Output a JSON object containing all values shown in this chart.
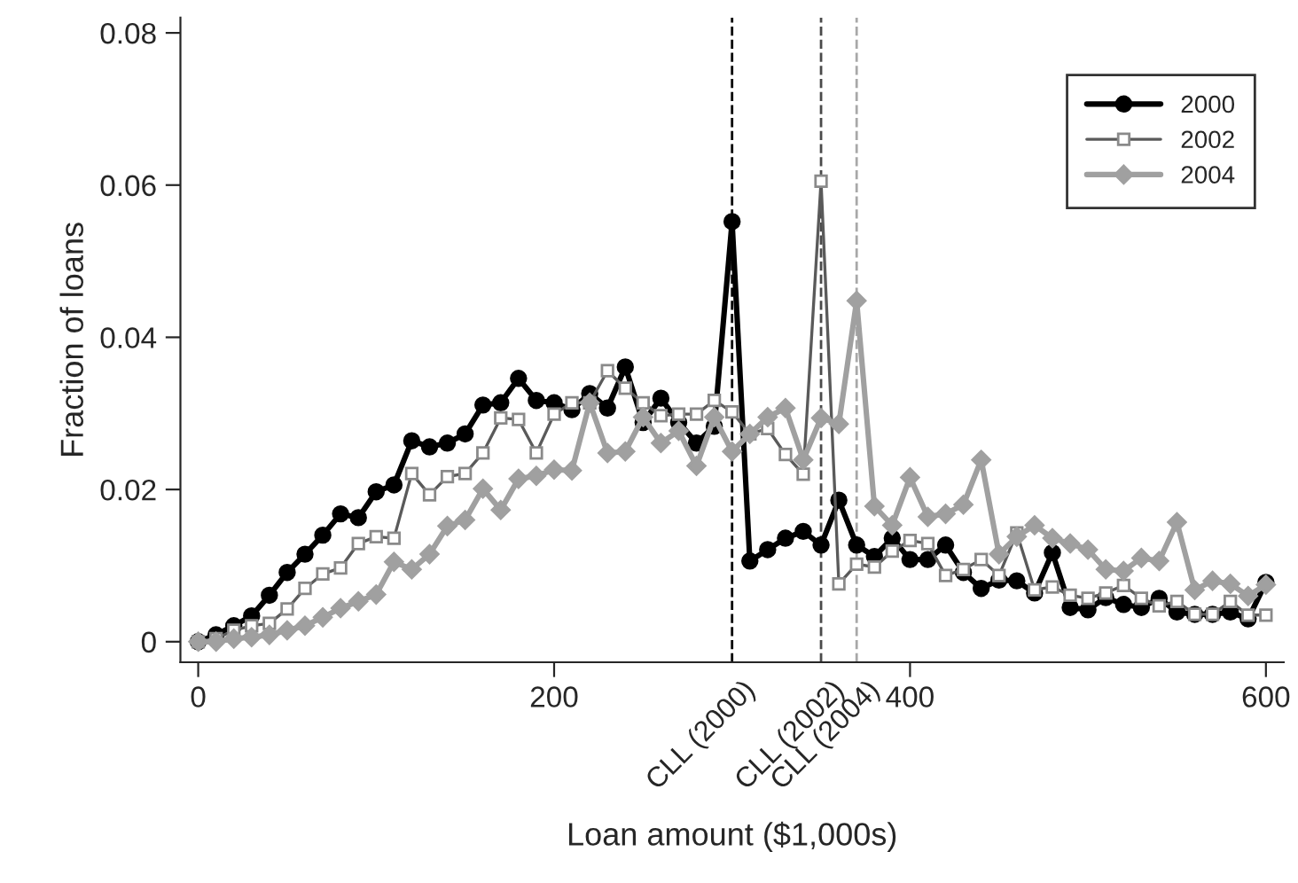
{
  "chart_data": {
    "type": "line",
    "xlabel": "Loan amount ($1,000s)",
    "ylabel": "Fraction of loans",
    "x": [
      0,
      10,
      20,
      30,
      40,
      50,
      60,
      70,
      80,
      90,
      100,
      110,
      120,
      130,
      140,
      150,
      160,
      170,
      180,
      190,
      200,
      210,
      220,
      230,
      240,
      250,
      260,
      270,
      280,
      290,
      300,
      310,
      320,
      330,
      340,
      350,
      360,
      370,
      380,
      390,
      400,
      410,
      420,
      430,
      440,
      450,
      460,
      470,
      480,
      490,
      500,
      510,
      520,
      530,
      540,
      550,
      560,
      570,
      580,
      590,
      600
    ],
    "series": [
      {
        "name": "2000",
        "color": "#000000",
        "marker": "circle",
        "values": [
          0,
          0.0009,
          0.0021,
          0.0034,
          0.0061,
          0.0091,
          0.0115,
          0.014,
          0.0168,
          0.0163,
          0.0197,
          0.0206,
          0.0264,
          0.0256,
          0.0261,
          0.0273,
          0.0311,
          0.0314,
          0.0346,
          0.0317,
          0.0314,
          0.0305,
          0.0326,
          0.0307,
          0.0361,
          0.0288,
          0.032,
          0.0288,
          0.0261,
          0.0283,
          0.0552,
          0.0106,
          0.0121,
          0.0136,
          0.0145,
          0.0127,
          0.0186,
          0.0127,
          0.0112,
          0.0136,
          0.0108,
          0.0108,
          0.0127,
          0.0091,
          0.007,
          0.0081,
          0.008,
          0.0064,
          0.0117,
          0.0045,
          0.0042,
          0.0058,
          0.0049,
          0.0045,
          0.0057,
          0.0039,
          0.0036,
          0.0036,
          0.0039,
          0.003,
          0.0078
        ]
      },
      {
        "name": "2002",
        "color": "#5a5a5a",
        "marker": "square",
        "values": [
          0,
          0.0004,
          0.0015,
          0.0021,
          0.0024,
          0.0043,
          0.007,
          0.0089,
          0.0097,
          0.0129,
          0.0138,
          0.0136,
          0.0221,
          0.0193,
          0.0217,
          0.0221,
          0.0248,
          0.0294,
          0.0292,
          0.0248,
          0.0299,
          0.0314,
          0.0314,
          0.0356,
          0.0333,
          0.0314,
          0.0297,
          0.0299,
          0.0299,
          0.0317,
          0.0302,
          0.0273,
          0.028,
          0.0246,
          0.022,
          0.0605,
          0.0076,
          0.0102,
          0.0098,
          0.0119,
          0.0133,
          0.0129,
          0.0087,
          0.0095,
          0.0108,
          0.0087,
          0.0143,
          0.0068,
          0.0072,
          0.0061,
          0.0057,
          0.0064,
          0.0074,
          0.0057,
          0.0047,
          0.0053,
          0.0036,
          0.0036,
          0.0053,
          0.0035,
          0.0035
        ]
      },
      {
        "name": "2004",
        "color": "#a0a0a0",
        "marker": "diamond",
        "values": [
          0,
          0,
          0.0004,
          0.0006,
          0.0009,
          0.0015,
          0.0021,
          0.0032,
          0.0044,
          0.0053,
          0.0062,
          0.0105,
          0.0095,
          0.0115,
          0.0152,
          0.016,
          0.0201,
          0.0173,
          0.0214,
          0.0218,
          0.0226,
          0.0225,
          0.0314,
          0.0248,
          0.025,
          0.0295,
          0.0261,
          0.0277,
          0.0231,
          0.0295,
          0.025,
          0.0273,
          0.0295,
          0.0307,
          0.0239,
          0.0294,
          0.0286,
          0.0448,
          0.0178,
          0.0153,
          0.0216,
          0.0164,
          0.0168,
          0.018,
          0.0239,
          0.0115,
          0.0138,
          0.0153,
          0.0136,
          0.0129,
          0.0121,
          0.0095,
          0.0093,
          0.011,
          0.0106,
          0.0157,
          0.0068,
          0.008,
          0.0076,
          0.006,
          0.0075
        ]
      }
    ],
    "xlim": [
      -10,
      610
    ],
    "ylim": [
      -0.0027,
      0.082
    ],
    "xticks": [
      0,
      200,
      400,
      600
    ],
    "yticks": [
      0,
      {
        "value": 0.02,
        "label": "0.02"
      },
      {
        "value": 0.04,
        "label": "0.04"
      },
      {
        "value": 0.06,
        "label": "0.06"
      },
      {
        "value": 0.08,
        "label": "0.08"
      }
    ],
    "ref_lines": [
      {
        "axis": "x",
        "value": 300,
        "label": "CLL (2000)",
        "color": "#000000",
        "line_style": "dashed"
      },
      {
        "axis": "x",
        "value": 350,
        "label": "CLL (2002)",
        "color": "#4a4a4a",
        "line_style": "dashed"
      },
      {
        "axis": "x",
        "value": 370,
        "label": "CLL (2004)",
        "color": "#a8a8a8",
        "line_style": "dashed"
      }
    ],
    "legend": "top right",
    "grid": false
  }
}
